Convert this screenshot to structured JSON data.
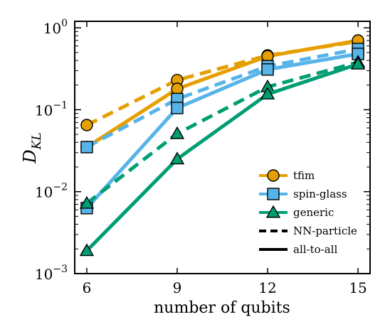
{
  "chart_data": {
    "type": "line",
    "xlabel": "number of qubits",
    "ylabel": "D_KL",
    "x": [
      6,
      9,
      12,
      15
    ],
    "xticks": [
      "6",
      "9",
      "12",
      "15"
    ],
    "xlim": [
      5.6,
      15.4
    ],
    "yscale": "log",
    "ylim": [
      0.001,
      1.2
    ],
    "yticks": [
      {
        "value": 0.001,
        "base": "10",
        "exp": "−3"
      },
      {
        "value": 0.01,
        "base": "10",
        "exp": "−2"
      },
      {
        "value": 0.1,
        "base": "10",
        "exp": "−1"
      },
      {
        "value": 1,
        "base": "10",
        "exp": "0"
      }
    ],
    "grid": false,
    "legend_position": "lower-right",
    "series": [
      {
        "name": "tfim",
        "model": "tfim",
        "connectivity": "NN-particle",
        "color": "#E69F00",
        "marker": "circle",
        "linestyle": "dashed",
        "values": [
          0.065,
          0.23,
          0.46,
          0.68
        ]
      },
      {
        "name": "tfim",
        "model": "tfim",
        "connectivity": "all-to-all",
        "color": "#E69F00",
        "marker": "circle",
        "linestyle": "solid",
        "values": [
          0.035,
          0.18,
          0.45,
          0.7
        ]
      },
      {
        "name": "spin-glass",
        "model": "spin-glass",
        "connectivity": "NN-particle",
        "color": "#56B4E9",
        "marker": "square",
        "linestyle": "dashed",
        "values": [
          0.035,
          0.135,
          0.34,
          0.55
        ]
      },
      {
        "name": "spin-glass",
        "model": "spin-glass",
        "connectivity": "all-to-all",
        "color": "#56B4E9",
        "marker": "square",
        "linestyle": "solid",
        "values": [
          0.0063,
          0.105,
          0.31,
          0.48
        ]
      },
      {
        "name": "generic",
        "model": "generic",
        "connectivity": "NN-particle",
        "color": "#009E73",
        "marker": "triangle",
        "linestyle": "dashed",
        "values": [
          0.0072,
          0.051,
          0.19,
          0.38
        ]
      },
      {
        "name": "generic",
        "model": "generic",
        "connectivity": "all-to-all",
        "color": "#009E73",
        "marker": "triangle",
        "linestyle": "solid",
        "values": [
          0.0019,
          0.025,
          0.155,
          0.36
        ]
      }
    ],
    "legend": [
      {
        "label": "tfim",
        "color": "#E69F00",
        "marker": "circle",
        "linestyle": "solid"
      },
      {
        "label": "spin-glass",
        "color": "#56B4E9",
        "marker": "square",
        "linestyle": "solid"
      },
      {
        "label": "generic",
        "color": "#009E73",
        "marker": "triangle",
        "linestyle": "solid"
      },
      {
        "label": "NN-particle",
        "color": "#000000",
        "marker": "none",
        "linestyle": "dashed"
      },
      {
        "label": "all-to-all",
        "color": "#000000",
        "marker": "none",
        "linestyle": "solid"
      }
    ]
  }
}
